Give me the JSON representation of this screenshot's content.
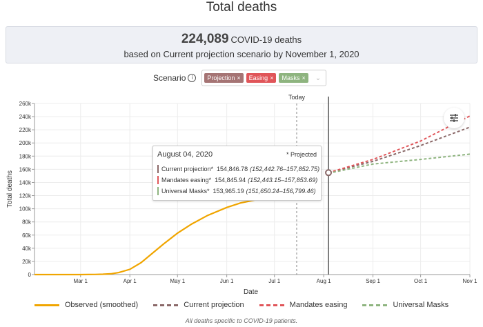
{
  "header": {
    "title": "Total deaths"
  },
  "summary": {
    "count": "224,089",
    "unit": "COVID-19 deaths",
    "subtitle": "based on Current projection scenario by November 1, 2020"
  },
  "scenario": {
    "label": "Scenario",
    "info_glyph": "i",
    "chips": [
      {
        "label": "Projection",
        "color": "#a57474"
      },
      {
        "label": "Easing",
        "color": "#e05559"
      },
      {
        "label": "Masks",
        "color": "#8eb47f"
      }
    ],
    "remove_glyph": "×",
    "dropdown_glyph": "⌄"
  },
  "tooltip": {
    "date": "August 04, 2020",
    "projected_note": "* Projected",
    "rows": [
      {
        "name": "Current projection*",
        "value": "154,846.78",
        "ci": "(152,442.76–157,852.75)",
        "color": "#8a6868"
      },
      {
        "name": "Mandates easing*",
        "value": "154,845.94",
        "ci": "(152,443.15–157,853.69)",
        "color": "#e05559"
      },
      {
        "name": "Universal Masks*",
        "value": "153,965.19",
        "ci": "(151,650.24–156,799.46)",
        "color": "#8eb47f"
      }
    ]
  },
  "legend": [
    {
      "label": "Observed (smoothed)",
      "color": "#f0a500",
      "style": "solid"
    },
    {
      "label": "Current projection",
      "color": "#8a6868",
      "style": "dashed"
    },
    {
      "label": "Mandates easing",
      "color": "#e05559",
      "style": "dashed"
    },
    {
      "label": "Universal Masks",
      "color": "#8eb47f",
      "style": "dashed"
    }
  ],
  "footnote": "All deaths specific to COVID-19 patients.",
  "chart_data": {
    "type": "line",
    "title": "Total deaths",
    "xlabel": "Date",
    "ylabel": "Total deaths",
    "x_ticks": [
      "Mar 1",
      "Apr 1",
      "May 1",
      "Jun 1",
      "Jul 1",
      "Aug 1",
      "Sep 1",
      "Oct 1",
      "Nov 1"
    ],
    "y_ticks": [
      "0",
      "20k",
      "40k",
      "60k",
      "80k",
      "100k",
      "120k",
      "140k",
      "160k",
      "180k",
      "200k",
      "220k",
      "240k",
      "260k"
    ],
    "ylim": [
      0,
      260000
    ],
    "xlim": [
      "2020-02-01",
      "2020-11-01"
    ],
    "grid": true,
    "today_label": "Today",
    "today_date": "2020-07-15",
    "selected_date": "2020-08-04",
    "series": [
      {
        "name": "Observed (smoothed)",
        "color": "#f0a500",
        "style": "solid",
        "x": [
          "2020-02-01",
          "2020-02-15",
          "2020-03-01",
          "2020-03-10",
          "2020-03-15",
          "2020-03-20",
          "2020-03-25",
          "2020-04-01",
          "2020-04-08",
          "2020-04-15",
          "2020-04-22",
          "2020-05-01",
          "2020-05-10",
          "2020-05-20",
          "2020-06-01",
          "2020-06-10",
          "2020-06-20",
          "2020-07-01"
        ],
        "y": [
          0,
          0,
          0,
          200,
          500,
          1200,
          3000,
          8000,
          18000,
          32000,
          46000,
          63000,
          77000,
          90000,
          102000,
          109000,
          114000,
          118000
        ]
      },
      {
        "name": "Current projection",
        "color": "#8a6868",
        "style": "dashed",
        "x": [
          "2020-08-04",
          "2020-09-01",
          "2020-10-01",
          "2020-11-01"
        ],
        "y": [
          154847,
          172000,
          196000,
          224089
        ]
      },
      {
        "name": "Mandates easing",
        "color": "#e05559",
        "style": "dashed",
        "x": [
          "2020-08-04",
          "2020-09-01",
          "2020-10-01",
          "2020-11-01"
        ],
        "y": [
          154846,
          175000,
          203000,
          241000
        ]
      },
      {
        "name": "Universal Masks",
        "color": "#8eb47f",
        "style": "dashed",
        "x": [
          "2020-08-04",
          "2020-09-01",
          "2020-10-01",
          "2020-11-01"
        ],
        "y": [
          153965,
          168000,
          175000,
          183000
        ]
      }
    ]
  }
}
